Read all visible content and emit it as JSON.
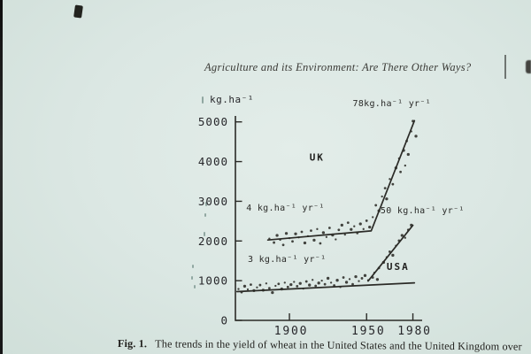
{
  "page": {
    "running_header": "Agriculture and its Environment: Are There Other Ways?",
    "caption_label": "Fig. 1.",
    "caption_text": "The trends in the yield of wheat in the United States and the United Kingdom over"
  },
  "chart_data": {
    "type": "scatter",
    "title": "",
    "ylabel": "kg.ha⁻¹",
    "xlabel": "",
    "grid": false,
    "x_ticks": [
      1900,
      1950,
      1980
    ],
    "y_ticks": [
      0,
      1000,
      2000,
      3000,
      4000,
      5000
    ],
    "x_range": [
      1865,
      1986
    ],
    "y_range": [
      0,
      5150
    ],
    "ink_color": "#2b2b27",
    "series": [
      {
        "name": "UK",
        "label_pos": [
          1913,
          4020
        ],
        "lines": [
          [
            [
              1886,
              2025
            ],
            [
              1953,
              2255
            ],
            [
              1981,
              5030
            ]
          ]
        ],
        "points": [
          [
            1887,
            2060
          ],
          [
            1890,
            1960
          ],
          [
            1892,
            2140
          ],
          [
            1894,
            2030
          ],
          [
            1896,
            1900
          ],
          [
            1898,
            2190
          ],
          [
            1900,
            2070
          ],
          [
            1902,
            1990
          ],
          [
            1904,
            2180
          ],
          [
            1906,
            2090
          ],
          [
            1908,
            2230
          ],
          [
            1910,
            1950
          ],
          [
            1912,
            2120
          ],
          [
            1914,
            2260
          ],
          [
            1916,
            2020
          ],
          [
            1918,
            2300
          ],
          [
            1920,
            1940
          ],
          [
            1922,
            2210
          ],
          [
            1924,
            2100
          ],
          [
            1926,
            2330
          ],
          [
            1928,
            2150
          ],
          [
            1930,
            2040
          ],
          [
            1932,
            2280
          ],
          [
            1934,
            2400
          ],
          [
            1936,
            2160
          ],
          [
            1938,
            2460
          ],
          [
            1940,
            2290
          ],
          [
            1942,
            2370
          ],
          [
            1944,
            2200
          ],
          [
            1946,
            2430
          ],
          [
            1948,
            2300
          ],
          [
            1950,
            2510
          ],
          [
            1952,
            2350
          ],
          [
            1954,
            2600
          ],
          [
            1956,
            2900
          ],
          [
            1958,
            2760
          ],
          [
            1960,
            3120
          ],
          [
            1962,
            3330
          ],
          [
            1963,
            3060
          ],
          [
            1965,
            3560
          ],
          [
            1967,
            3430
          ],
          [
            1969,
            3840
          ],
          [
            1971,
            4080
          ],
          [
            1972,
            3740
          ],
          [
            1974,
            4280
          ],
          [
            1975,
            3900
          ],
          [
            1976,
            4520
          ],
          [
            1977,
            4180
          ],
          [
            1979,
            4760
          ],
          [
            1980,
            5020
          ],
          [
            1982,
            4640
          ]
        ]
      },
      {
        "name": "USA",
        "label_pos": [
          1963,
          1270
        ],
        "lines": [
          [
            [
              1866,
              725
            ],
            [
              1981,
              945
            ]
          ],
          [
            [
              1951,
              990
            ],
            [
              1980,
              2395
            ]
          ]
        ],
        "points": [
          [
            1867,
            790
          ],
          [
            1869,
            710
          ],
          [
            1871,
            860
          ],
          [
            1873,
            780
          ],
          [
            1875,
            900
          ],
          [
            1877,
            750
          ],
          [
            1879,
            830
          ],
          [
            1881,
            890
          ],
          [
            1883,
            760
          ],
          [
            1885,
            930
          ],
          [
            1887,
            810
          ],
          [
            1889,
            700
          ],
          [
            1891,
            870
          ],
          [
            1893,
            920
          ],
          [
            1895,
            790
          ],
          [
            1897,
            950
          ],
          [
            1899,
            840
          ],
          [
            1901,
            900
          ],
          [
            1903,
            970
          ],
          [
            1905,
            860
          ],
          [
            1907,
            930
          ],
          [
            1909,
            800
          ],
          [
            1911,
            980
          ],
          [
            1913,
            890
          ],
          [
            1915,
            1020
          ],
          [
            1917,
            870
          ],
          [
            1919,
            940
          ],
          [
            1921,
            1000
          ],
          [
            1923,
            910
          ],
          [
            1925,
            1060
          ],
          [
            1927,
            950
          ],
          [
            1929,
            880
          ],
          [
            1931,
            1010
          ],
          [
            1933,
            840
          ],
          [
            1935,
            1080
          ],
          [
            1937,
            960
          ],
          [
            1939,
            1040
          ],
          [
            1941,
            910
          ],
          [
            1943,
            1100
          ],
          [
            1945,
            990
          ],
          [
            1947,
            1060
          ],
          [
            1949,
            1130
          ],
          [
            1951,
            1010
          ],
          [
            1954,
            1080
          ],
          [
            1957,
            1030
          ],
          [
            1955,
            1200
          ],
          [
            1958,
            1320
          ],
          [
            1961,
            1460
          ],
          [
            1963,
            1590
          ],
          [
            1965,
            1730
          ],
          [
            1967,
            1640
          ],
          [
            1969,
            1880
          ],
          [
            1971,
            2010
          ],
          [
            1973,
            2140
          ],
          [
            1975,
            2080
          ],
          [
            1977,
            2280
          ],
          [
            1979,
            2400
          ]
        ]
      }
    ],
    "annotations": [
      {
        "text": "78kg.ha⁻¹ yr⁻¹",
        "pos": [
          1941,
          5400
        ]
      },
      {
        "text": "4 kg.ha⁻¹ yr⁻¹",
        "pos": [
          1872,
          2760
        ]
      },
      {
        "text": "50 kg.ha⁻¹ yr⁻¹",
        "pos": [
          1959,
          2700
        ]
      },
      {
        "text": "3 kg.ha⁻¹ yr⁻¹",
        "pos": [
          1873,
          1470
        ]
      }
    ]
  }
}
